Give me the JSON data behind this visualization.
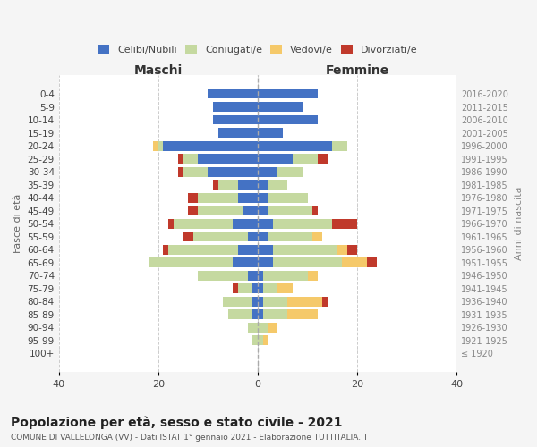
{
  "age_groups": [
    "100+",
    "95-99",
    "90-94",
    "85-89",
    "80-84",
    "75-79",
    "70-74",
    "65-69",
    "60-64",
    "55-59",
    "50-54",
    "45-49",
    "40-44",
    "35-39",
    "30-34",
    "25-29",
    "20-24",
    "15-19",
    "10-14",
    "5-9",
    "0-4"
  ],
  "birth_years": [
    "≤ 1920",
    "1921-1925",
    "1926-1930",
    "1931-1935",
    "1936-1940",
    "1941-1945",
    "1946-1950",
    "1951-1955",
    "1956-1960",
    "1961-1965",
    "1966-1970",
    "1971-1975",
    "1976-1980",
    "1981-1985",
    "1986-1990",
    "1991-1995",
    "1996-2000",
    "2001-2005",
    "2006-2010",
    "2011-2015",
    "2016-2020"
  ],
  "maschi": {
    "celibi": [
      0,
      0,
      0,
      1,
      1,
      1,
      2,
      5,
      4,
      2,
      5,
      3,
      4,
      4,
      10,
      12,
      19,
      8,
      9,
      9,
      10
    ],
    "coniugati": [
      0,
      1,
      2,
      5,
      6,
      3,
      10,
      17,
      14,
      11,
      12,
      9,
      8,
      4,
      5,
      3,
      1,
      0,
      0,
      0,
      0
    ],
    "vedovi": [
      0,
      0,
      0,
      0,
      0,
      0,
      0,
      0,
      0,
      0,
      0,
      0,
      0,
      0,
      0,
      0,
      1,
      0,
      0,
      0,
      0
    ],
    "divorziati": [
      0,
      0,
      0,
      0,
      0,
      1,
      0,
      0,
      1,
      2,
      1,
      2,
      2,
      1,
      1,
      1,
      0,
      0,
      0,
      0,
      0
    ]
  },
  "femmine": {
    "nubili": [
      0,
      0,
      0,
      1,
      1,
      1,
      1,
      3,
      3,
      2,
      3,
      2,
      2,
      2,
      4,
      7,
      15,
      5,
      12,
      9,
      12
    ],
    "coniugate": [
      0,
      1,
      2,
      5,
      5,
      3,
      9,
      14,
      13,
      9,
      12,
      9,
      8,
      4,
      5,
      5,
      3,
      0,
      0,
      0,
      0
    ],
    "vedove": [
      0,
      1,
      2,
      6,
      7,
      3,
      2,
      5,
      2,
      2,
      0,
      0,
      0,
      0,
      0,
      0,
      0,
      0,
      0,
      0,
      0
    ],
    "divorziate": [
      0,
      0,
      0,
      0,
      1,
      0,
      0,
      2,
      2,
      0,
      5,
      1,
      0,
      0,
      0,
      2,
      0,
      0,
      0,
      0,
      0
    ]
  },
  "colors": {
    "celibi_nubili": "#4472c4",
    "coniugati_e": "#c5d9a0",
    "vedovi_e": "#f5c96a",
    "divorziati_e": "#c0392b"
  },
  "xlim": 40,
  "title": "Popolazione per età, sesso e stato civile - 2021",
  "subtitle": "COMUNE DI VALLELONGA (VV) - Dati ISTAT 1° gennaio 2021 - Elaborazione TUTTITALIA.IT",
  "ylabel_left": "Fasce di età",
  "ylabel_right": "Anni di nascita",
  "xlabel_maschi": "Maschi",
  "xlabel_femmine": "Femmine",
  "bg_color": "#f5f5f5",
  "plot_bg": "#ffffff",
  "grid_color": "#cccccc"
}
